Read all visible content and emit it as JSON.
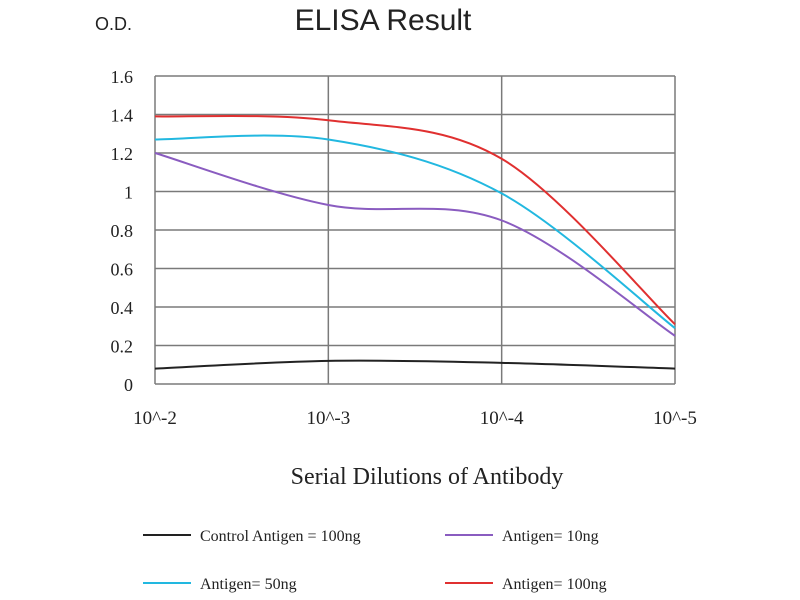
{
  "chart_data": {
    "type": "line",
    "title": "ELISA Result",
    "ylabel": "O.D.",
    "xlabel": "Serial Dilutions of Antibody",
    "categories": [
      "10^-2",
      "10^-3",
      "10^-4",
      "10^-5"
    ],
    "ylim": [
      0,
      1.6
    ],
    "yticks": [
      "0",
      "0.2",
      "0.4",
      "0.6",
      "0.8",
      "1",
      "1.2",
      "1.4",
      "1.6"
    ],
    "grid": true,
    "legend_position": "bottom",
    "series": [
      {
        "name": "Control Antigen = 100ng",
        "color": "#222222",
        "values": [
          0.08,
          0.12,
          0.11,
          0.08
        ]
      },
      {
        "name": "Antigen= 10ng",
        "color": "#8a5cc0",
        "values": [
          1.2,
          0.93,
          0.85,
          0.25
        ]
      },
      {
        "name": "Antigen= 50ng",
        "color": "#22b8e0",
        "values": [
          1.27,
          1.27,
          0.99,
          0.29
        ]
      },
      {
        "name": "Antigen= 100ng",
        "color": "#e03030",
        "values": [
          1.39,
          1.37,
          1.17,
          0.31
        ]
      }
    ]
  }
}
